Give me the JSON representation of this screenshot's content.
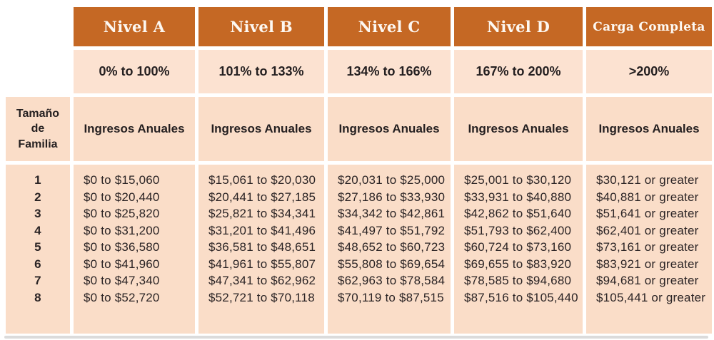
{
  "table": {
    "income_header": "Ingresos Anuales",
    "family_column": {
      "header_lines": [
        "Tamaño",
        "de",
        "Familia"
      ],
      "sizes": [
        "1",
        "2",
        "3",
        "4",
        "5",
        "6",
        "7",
        "8"
      ]
    },
    "levels": [
      {
        "name": "Nivel A",
        "fpl_range": "0% to 100%",
        "incomes": [
          "$0 to $15,060",
          "$0 to $20,440",
          "$0 to $25,820",
          "$0 to $31,200",
          "$0 to $36,580",
          "$0 to $41,960",
          "$0 to $47,340",
          "$0 to $52,720"
        ]
      },
      {
        "name": "Nivel B",
        "fpl_range": "101% to 133%",
        "incomes": [
          "$15,061 to $20,030",
          "$20,441 to $27,185",
          "$25,821 to $34,341",
          "$31,201 to $41,496",
          "$36,581 to $48,651",
          "$41,961 to $55,807",
          "$47,341 to $62,962",
          "$52,721 to $70,118"
        ]
      },
      {
        "name": "Nivel C",
        "fpl_range": "134% to 166%",
        "incomes": [
          "$20,031 to $25,000",
          "$27,186 to $33,930",
          "$34,342 to $42,861",
          "$41,497 to $51,792",
          "$48,652 to $60,723",
          "$55,808 to $69,654",
          "$62,963 to $78,584",
          "$70,119 to $87,515"
        ]
      },
      {
        "name": "Nivel D",
        "fpl_range": "167% to 200%",
        "incomes": [
          "$25,001 to $30,120",
          "$33,931 to $40,880",
          "$42,862 to $51,640",
          "$51,793 to $62,400",
          "$60,724 to $73,160",
          "$69,655 to $83,920",
          "$78,585 to $94,680",
          "$87,516 to $105,440"
        ]
      },
      {
        "name": "Carga Completa",
        "fpl_range": ">200%",
        "incomes": [
          "$30,121 or greater",
          "$40,881 or greater",
          "$51,641 or greater",
          "$62,401 or greater",
          "$73,161 or greater",
          "$83,921 or greater",
          "$94,681 or greater",
          "$105,441 or greater"
        ]
      }
    ]
  },
  "colors": {
    "header_orange": "#C56824",
    "cell_peach": "#FADDC8",
    "pct_row_peach": "#FCE2D1",
    "header_text": "#FDF8F2",
    "body_text": "#2B2425",
    "background": "#FFFFFF",
    "shadow_bar": "#DBDBDB"
  },
  "chart_data": {
    "type": "table",
    "title": "",
    "column_headers": [
      "Nivel A",
      "Nivel B",
      "Nivel C",
      "Nivel D",
      "Carga Completa"
    ],
    "fpl_ranges": [
      "0% to 100%",
      "101% to 133%",
      "134% to 166%",
      "167% to 200%",
      ">200%"
    ],
    "row_header_label": "Tamaño de Familia",
    "income_header": "Ingresos Anuales",
    "rows": [
      {
        "family_size": 1,
        "nivel_a": "$0 to $15,060",
        "nivel_b": "$15,061 to $20,030",
        "nivel_c": "$20,031 to $25,000",
        "nivel_d": "$25,001 to $30,120",
        "carga_completa": "$30,121 or greater"
      },
      {
        "family_size": 2,
        "nivel_a": "$0 to $20,440",
        "nivel_b": "$20,441 to $27,185",
        "nivel_c": "$27,186 to $33,930",
        "nivel_d": "$33,931 to $40,880",
        "carga_completa": "$40,881 or greater"
      },
      {
        "family_size": 3,
        "nivel_a": "$0 to $25,820",
        "nivel_b": "$25,821 to $34,341",
        "nivel_c": "$34,342 to $42,861",
        "nivel_d": "$42,862 to $51,640",
        "carga_completa": "$51,641 or greater"
      },
      {
        "family_size": 4,
        "nivel_a": "$0 to $31,200",
        "nivel_b": "$31,201 to $41,496",
        "nivel_c": "$41,497 to $51,792",
        "nivel_d": "$51,793 to $62,400",
        "carga_completa": "$62,401 or greater"
      },
      {
        "family_size": 5,
        "nivel_a": "$0 to $36,580",
        "nivel_b": "$36,581 to $48,651",
        "nivel_c": "$48,652 to $60,723",
        "nivel_d": "$60,724 to $73,160",
        "carga_completa": "$73,161 or greater"
      },
      {
        "family_size": 6,
        "nivel_a": "$0 to $41,960",
        "nivel_b": "$41,961 to $55,807",
        "nivel_c": "$55,808 to $69,654",
        "nivel_d": "$69,655 to $83,920",
        "carga_completa": "$83,921 or greater"
      },
      {
        "family_size": 7,
        "nivel_a": "$0 to $47,340",
        "nivel_b": "$47,341 to $62,962",
        "nivel_c": "$62,963 to $78,584",
        "nivel_d": "$78,585 to $94,680",
        "carga_completa": "$94,681 or greater"
      },
      {
        "family_size": 8,
        "nivel_a": "$0 to $52,720",
        "nivel_b": "$52,721 to $70,118",
        "nivel_c": "$70,119 to $87,515",
        "nivel_d": "$87,516 to $105,440",
        "carga_completa": "$105,441 or greater"
      }
    ]
  }
}
